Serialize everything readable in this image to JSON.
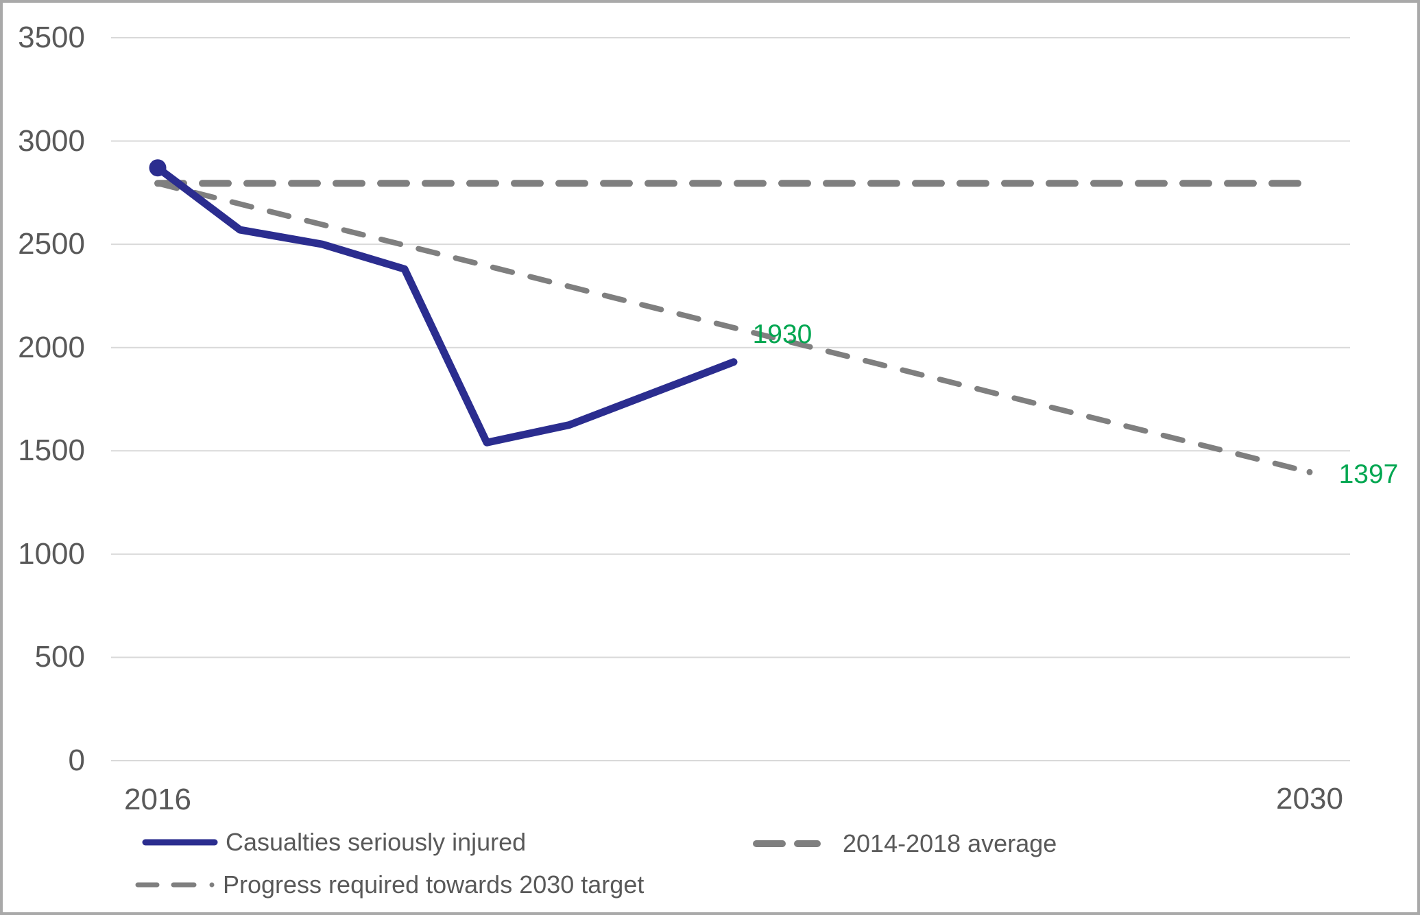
{
  "chart_data": {
    "type": "line",
    "title": "",
    "gridlines": true,
    "gridline_color": "#d9d9d9",
    "background_color": "#ffffff",
    "text_color": "#595959",
    "x_axis": {
      "range": [
        2016,
        2030
      ],
      "min_label": "2016",
      "max_label": "2030"
    },
    "y_axis": {
      "range": [
        0,
        3500
      ],
      "ticks": [
        3500,
        3000,
        2500,
        2000,
        1500,
        1000,
        500,
        0
      ]
    },
    "series": [
      {
        "name": "Casualties seriously injured",
        "color": "#2b2d8f",
        "style": "solid",
        "marker_start": true,
        "points": [
          {
            "x": 2016,
            "y": 2870
          },
          {
            "x": 2017,
            "y": 2570
          },
          {
            "x": 2018,
            "y": 2500
          },
          {
            "x": 2019,
            "y": 2380
          },
          {
            "x": 2020,
            "y": 1540
          },
          {
            "x": 2021,
            "y": 1625
          },
          {
            "x": 2023,
            "y": 1930
          }
        ]
      },
      {
        "name": "2014-2018 average",
        "color": "#7f7f7f",
        "style": "dashed-thick",
        "points": [
          {
            "x": 2016,
            "y": 2795
          },
          {
            "x": 2030,
            "y": 2795
          }
        ]
      },
      {
        "name": "Progress required towards 2030 target",
        "color": "#7f7f7f",
        "style": "dashed",
        "end_dot": true,
        "points": [
          {
            "x": 2016,
            "y": 2795
          },
          {
            "x": 2030,
            "y": 1397
          }
        ]
      }
    ],
    "annotations": [
      {
        "text": "1930",
        "color": "#00a650",
        "refers_to": "Casualties seriously injured latest value"
      },
      {
        "text": "1397",
        "color": "#00a650",
        "refers_to": "2030 target value"
      }
    ],
    "legend_position": "bottom"
  }
}
